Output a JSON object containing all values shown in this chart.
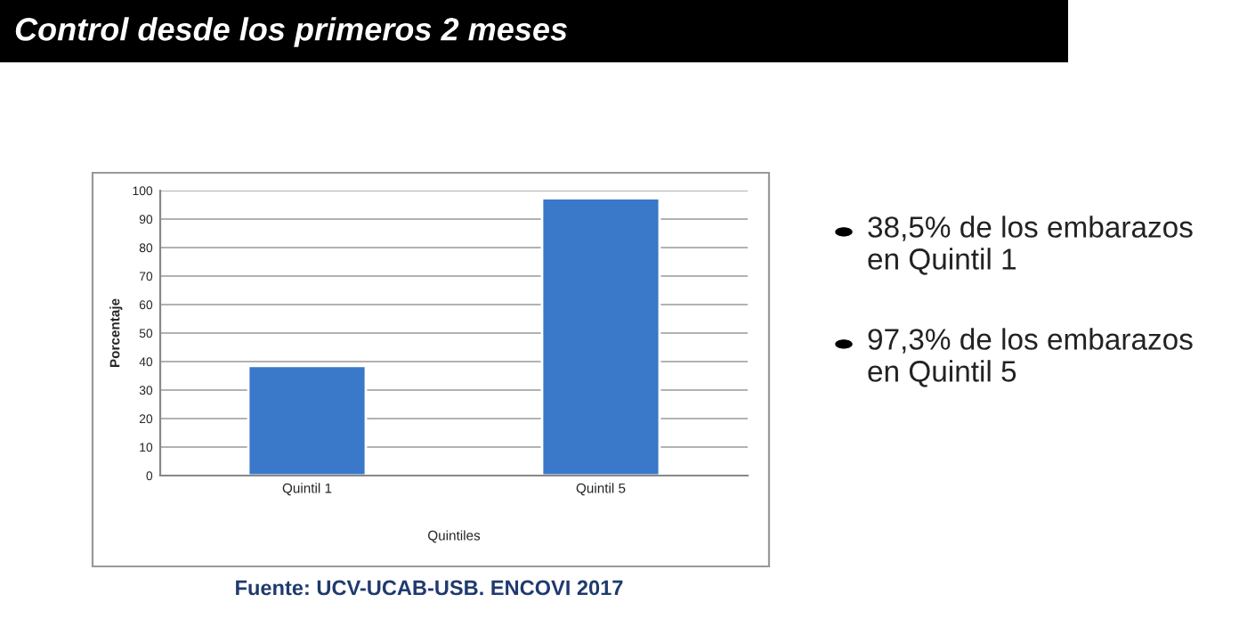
{
  "chart_data": {
    "type": "bar",
    "title": "Control desde los primeros 2 meses",
    "categories": [
      "Quintil 1",
      "Quintil 5"
    ],
    "values": [
      38.5,
      97.3
    ],
    "color": "#3a78c9",
    "xlabel": "Quintiles",
    "ylabel": "Porcentaje",
    "ylim": [
      0,
      100
    ],
    "yticks": [
      0,
      10,
      20,
      30,
      40,
      50,
      60,
      70,
      80,
      90,
      100
    ],
    "grid": "y",
    "annotations": [
      "38,5% de los embarazos\nen Quintil 1",
      "97,3% de los embarazos\nen Quintil 5",
      "Fuente: UCV-UCAB-USB. ENCOVI 2017"
    ]
  }
}
